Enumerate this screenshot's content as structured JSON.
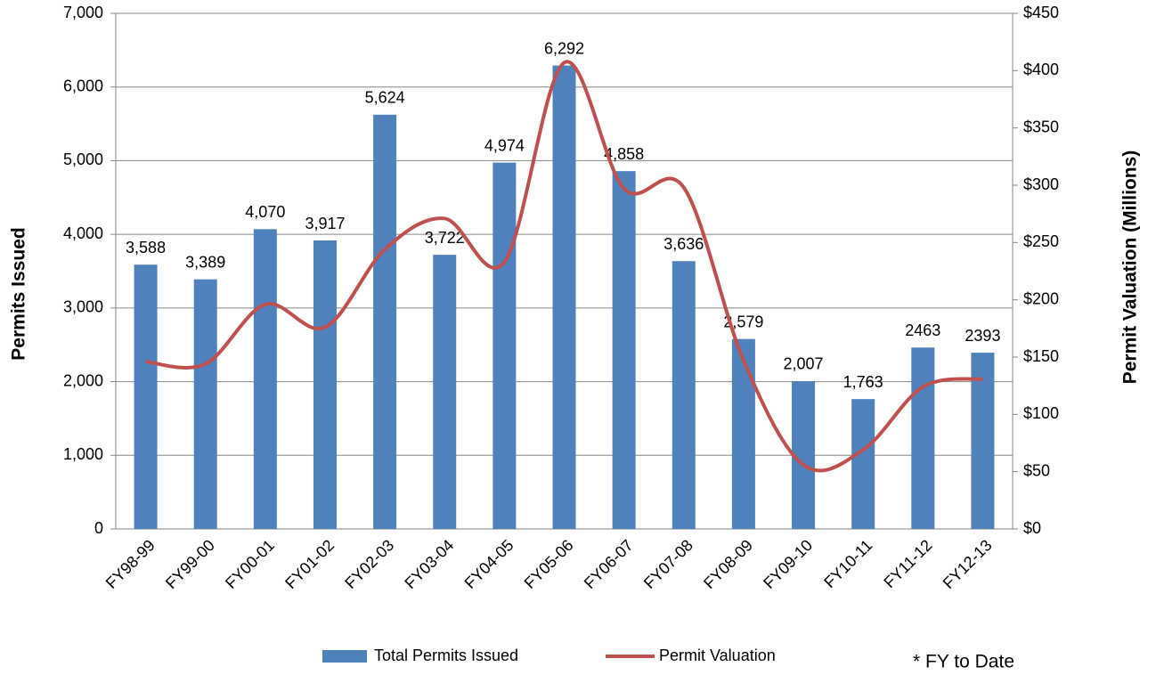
{
  "chart_data": {
    "type": "bar_line",
    "categories": [
      "FY98-99",
      "FY99-00",
      "FY00-01",
      "FY01-02",
      "FY02-03",
      "FY03-04",
      "FY04-05",
      "FY05-06",
      "FY06-07",
      "FY07-08",
      "FY08-09",
      "FY09-10",
      "FY10-11",
      "FY11-12",
      "FY12-13"
    ],
    "series": [
      {
        "name": "Total Permits Issued",
        "color": "#4f81bd",
        "type": "bar",
        "values": [
          3588,
          3389,
          4070,
          3917,
          5624,
          3722,
          4974,
          6292,
          4858,
          3636,
          2579,
          2007,
          1763,
          2463,
          2393
        ],
        "value_labels": [
          "3,588",
          "3,389",
          "4,070",
          "3,917",
          "5,624",
          "3,722",
          "4,974",
          "6,292",
          "4,858",
          "3,636",
          "2,579",
          "2,007",
          "1,763",
          "2463",
          "2393"
        ]
      },
      {
        "name": "Permit Valuation",
        "color": "#c0504d",
        "type": "line",
        "axis": "y2",
        "values": [
          146,
          144,
          196,
          176,
          244,
          271,
          233,
          407,
          297,
          298,
          147,
          56,
          69,
          124,
          131
        ]
      }
    ],
    "ylabel": "Permits Issued",
    "y2label": "Permit Valuation (Millions)",
    "ylim": [
      0,
      7000
    ],
    "yticks": [
      0,
      {
        "value": 1000,
        "label": "1,000"
      },
      {
        "value": 2000,
        "label": "2,000"
      },
      {
        "value": 3000,
        "label": "3,000"
      },
      {
        "value": 4000,
        "label": "4,000"
      },
      {
        "value": 5000,
        "label": "5,000"
      },
      {
        "value": 6000,
        "label": "6,000"
      },
      {
        "value": 7000,
        "label": "7,000"
      }
    ],
    "y2lim": [
      0,
      450
    ],
    "y2ticks": [
      {
        "value": 0,
        "label": "$0"
      },
      {
        "value": 50,
        "label": "$50"
      },
      {
        "value": 100,
        "label": "$100"
      },
      {
        "value": 150,
        "label": "$150"
      },
      {
        "value": 200,
        "label": "$200"
      },
      {
        "value": 250,
        "label": "$250"
      },
      {
        "value": 300,
        "label": "$300"
      },
      {
        "value": 350,
        "label": "$350"
      },
      {
        "value": 400,
        "label": "$400"
      },
      {
        "value": 450,
        "label": "$450"
      }
    ],
    "grid": true,
    "legend": "bottom",
    "annotation": "* FY to Date"
  }
}
